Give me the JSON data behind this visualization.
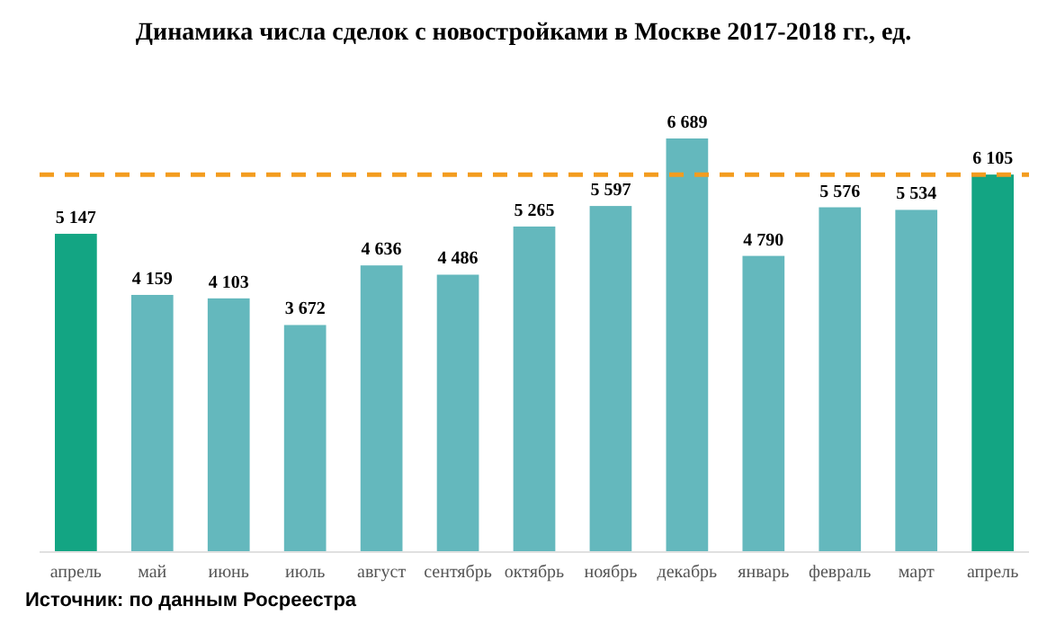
{
  "chart_data": {
    "type": "bar",
    "title": "Динамика числа сделок с новостройками в Москве 2017-2018 гг., ед.",
    "categories": [
      "апрель",
      "май",
      "июнь",
      "июль",
      "август",
      "сентябрь",
      "октябрь",
      "ноябрь",
      "декабрь",
      "январь",
      "февраль",
      "март",
      "апрель"
    ],
    "values": [
      5147,
      4159,
      4103,
      3672,
      4636,
      4486,
      5265,
      5597,
      6689,
      4790,
      5576,
      5534,
      6105
    ],
    "value_labels": [
      "5 147",
      "4 159",
      "4 103",
      "3 672",
      "4 636",
      "4 486",
      "5 265",
      "5 597",
      "6 689",
      "4 790",
      "5 576",
      "5 534",
      "6 105"
    ],
    "colors": [
      "#13a583",
      "#64b8bd",
      "#64b8bd",
      "#64b8bd",
      "#64b8bd",
      "#64b8bd",
      "#64b8bd",
      "#64b8bd",
      "#64b8bd",
      "#64b8bd",
      "#64b8bd",
      "#64b8bd",
      "#13a583"
    ],
    "ref_lines": [
      {
        "axis": "y",
        "value": 6105,
        "color": "#f39c1f",
        "line_style": "dashed"
      }
    ],
    "annotations": [
      "Источник: по данным Росреестра"
    ]
  }
}
